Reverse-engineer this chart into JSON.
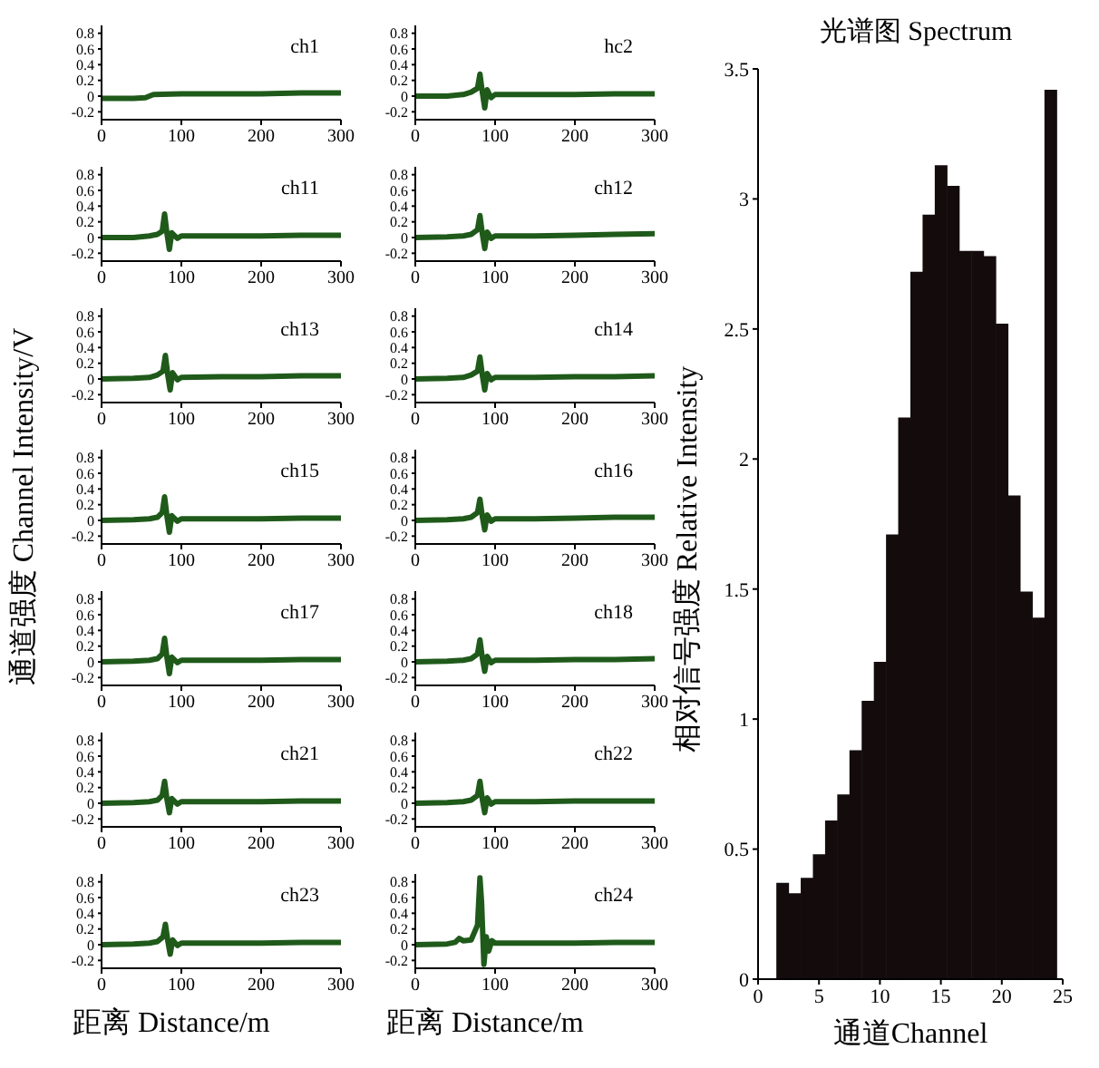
{
  "chart_data": [
    {
      "type": "line",
      "annotations": [
        "ch1"
      ],
      "color": "#1f5a1a",
      "x": [
        0,
        40,
        55,
        65,
        100,
        150,
        200,
        250,
        300
      ],
      "values": [
        -0.03,
        -0.03,
        -0.02,
        0.02,
        0.03,
        0.03,
        0.03,
        0.04,
        0.04
      ],
      "xlim": [
        0,
        300
      ],
      "xticks": [
        0,
        100,
        200,
        300
      ],
      "ylim": [
        -0.3,
        0.9
      ],
      "yticks": [
        -0.2,
        0,
        0.2,
        0.4,
        0.6,
        0.8
      ]
    },
    {
      "type": "line",
      "annotations": [
        "hc2"
      ],
      "color": "#1f5a1a",
      "x": [
        0,
        40,
        60,
        70,
        78,
        81,
        84,
        87,
        90,
        95,
        100,
        150,
        200,
        250,
        300
      ],
      "values": [
        0.0,
        0.0,
        0.02,
        0.05,
        0.1,
        0.28,
        0.05,
        -0.15,
        0.08,
        -0.02,
        0.02,
        0.02,
        0.02,
        0.03,
        0.03
      ],
      "xlim": [
        0,
        300
      ],
      "xticks": [
        0,
        100,
        200,
        300
      ],
      "ylim": [
        -0.3,
        0.9
      ],
      "yticks": [
        -0.2,
        0,
        0.2,
        0.4,
        0.6,
        0.8
      ]
    },
    {
      "type": "line",
      "annotations": [
        "ch11"
      ],
      "color": "#1f5a1a",
      "x": [
        0,
        40,
        60,
        70,
        76,
        79,
        82,
        85,
        88,
        95,
        100,
        150,
        200,
        250,
        300
      ],
      "values": [
        0.0,
        0.0,
        0.02,
        0.04,
        0.08,
        0.3,
        0.05,
        -0.15,
        0.06,
        -0.01,
        0.02,
        0.02,
        0.02,
        0.03,
        0.03
      ],
      "xlim": [
        0,
        300
      ],
      "xticks": [
        0,
        100,
        200,
        300
      ],
      "ylim": [
        -0.3,
        0.9
      ],
      "yticks": [
        -0.2,
        0,
        0.2,
        0.4,
        0.6,
        0.8
      ]
    },
    {
      "type": "line",
      "annotations": [
        "ch12"
      ],
      "color": "#1f5a1a",
      "x": [
        0,
        40,
        60,
        70,
        78,
        81,
        84,
        87,
        90,
        95,
        100,
        150,
        200,
        250,
        300
      ],
      "values": [
        0.0,
        0.01,
        0.02,
        0.04,
        0.1,
        0.28,
        0.05,
        -0.14,
        0.07,
        -0.01,
        0.02,
        0.02,
        0.03,
        0.04,
        0.05
      ],
      "xlim": [
        0,
        300
      ],
      "xticks": [
        0,
        100,
        200,
        300
      ],
      "ylim": [
        -0.3,
        0.9
      ],
      "yticks": [
        -0.2,
        0,
        0.2,
        0.4,
        0.6,
        0.8
      ]
    },
    {
      "type": "line",
      "annotations": [
        "ch13"
      ],
      "color": "#1f5a1a",
      "x": [
        0,
        40,
        60,
        70,
        77,
        80,
        83,
        86,
        89,
        95,
        100,
        150,
        200,
        250,
        300
      ],
      "values": [
        0.0,
        0.01,
        0.02,
        0.05,
        0.1,
        0.3,
        0.05,
        -0.14,
        0.08,
        -0.01,
        0.02,
        0.03,
        0.03,
        0.04,
        0.04
      ],
      "xlim": [
        0,
        300
      ],
      "xticks": [
        0,
        100,
        200,
        300
      ],
      "ylim": [
        -0.3,
        0.9
      ],
      "yticks": [
        -0.2,
        0,
        0.2,
        0.4,
        0.6,
        0.8
      ]
    },
    {
      "type": "line",
      "annotations": [
        "ch14"
      ],
      "color": "#1f5a1a",
      "x": [
        0,
        40,
        60,
        70,
        78,
        81,
        84,
        87,
        90,
        95,
        100,
        150,
        200,
        250,
        300
      ],
      "values": [
        0.0,
        0.01,
        0.02,
        0.05,
        0.1,
        0.28,
        0.05,
        -0.14,
        0.07,
        -0.01,
        0.02,
        0.02,
        0.03,
        0.03,
        0.04
      ],
      "xlim": [
        0,
        300
      ],
      "xticks": [
        0,
        100,
        200,
        300
      ],
      "ylim": [
        -0.3,
        0.9
      ],
      "yticks": [
        -0.2,
        0,
        0.2,
        0.4,
        0.6,
        0.8
      ]
    },
    {
      "type": "line",
      "ylabel": "通道强度 Channel Intensity/V",
      "annotations": [
        "ch15"
      ],
      "color": "#1f5a1a",
      "x": [
        0,
        40,
        60,
        70,
        76,
        79,
        82,
        85,
        88,
        95,
        100,
        150,
        200,
        250,
        300
      ],
      "values": [
        0.0,
        0.01,
        0.02,
        0.04,
        0.1,
        0.3,
        0.05,
        -0.15,
        0.06,
        -0.01,
        0.02,
        0.02,
        0.02,
        0.03,
        0.03
      ],
      "xlim": [
        0,
        300
      ],
      "xticks": [
        0,
        100,
        200,
        300
      ],
      "ylim": [
        -0.3,
        0.9
      ],
      "yticks": [
        -0.2,
        0,
        0.2,
        0.4,
        0.6,
        0.8
      ]
    },
    {
      "type": "line",
      "annotations": [
        "ch16"
      ],
      "color": "#1f5a1a",
      "x": [
        0,
        40,
        60,
        70,
        78,
        81,
        84,
        87,
        90,
        95,
        100,
        150,
        200,
        250,
        300
      ],
      "values": [
        0.0,
        0.01,
        0.02,
        0.04,
        0.1,
        0.27,
        0.05,
        -0.12,
        0.07,
        -0.01,
        0.02,
        0.02,
        0.03,
        0.04,
        0.04
      ],
      "xlim": [
        0,
        300
      ],
      "xticks": [
        0,
        100,
        200,
        300
      ],
      "ylim": [
        -0.3,
        0.9
      ],
      "yticks": [
        -0.2,
        0,
        0.2,
        0.4,
        0.6,
        0.8
      ]
    },
    {
      "type": "line",
      "annotations": [
        "ch17"
      ],
      "color": "#1f5a1a",
      "x": [
        0,
        40,
        60,
        70,
        76,
        79,
        82,
        85,
        88,
        95,
        100,
        150,
        200,
        250,
        300
      ],
      "values": [
        0.0,
        0.01,
        0.02,
        0.04,
        0.1,
        0.3,
        0.05,
        -0.15,
        0.06,
        -0.01,
        0.02,
        0.02,
        0.02,
        0.03,
        0.03
      ],
      "xlim": [
        0,
        300
      ],
      "xticks": [
        0,
        100,
        200,
        300
      ],
      "ylim": [
        -0.3,
        0.9
      ],
      "yticks": [
        -0.2,
        0,
        0.2,
        0.4,
        0.6,
        0.8
      ]
    },
    {
      "type": "line",
      "annotations": [
        "ch18"
      ],
      "color": "#1f5a1a",
      "x": [
        0,
        40,
        60,
        70,
        78,
        81,
        84,
        87,
        90,
        95,
        100,
        150,
        200,
        250,
        300
      ],
      "values": [
        0.0,
        0.01,
        0.02,
        0.04,
        0.1,
        0.28,
        0.05,
        -0.12,
        0.07,
        -0.01,
        0.02,
        0.02,
        0.03,
        0.03,
        0.04
      ],
      "xlim": [
        0,
        300
      ],
      "xticks": [
        0,
        100,
        200,
        300
      ],
      "ylim": [
        -0.3,
        0.9
      ],
      "yticks": [
        -0.2,
        0,
        0.2,
        0.4,
        0.6,
        0.8
      ]
    },
    {
      "type": "line",
      "annotations": [
        "ch21"
      ],
      "color": "#1f5a1a",
      "x": [
        0,
        40,
        60,
        70,
        76,
        79,
        82,
        85,
        88,
        95,
        100,
        150,
        200,
        250,
        300
      ],
      "values": [
        0.0,
        0.01,
        0.02,
        0.04,
        0.1,
        0.28,
        0.05,
        -0.12,
        0.06,
        -0.01,
        0.02,
        0.02,
        0.02,
        0.03,
        0.03
      ],
      "xlim": [
        0,
        300
      ],
      "xticks": [
        0,
        100,
        200,
        300
      ],
      "ylim": [
        -0.3,
        0.9
      ],
      "yticks": [
        -0.2,
        0,
        0.2,
        0.4,
        0.6,
        0.8
      ]
    },
    {
      "type": "line",
      "annotations": [
        "ch22"
      ],
      "color": "#1f5a1a",
      "x": [
        0,
        40,
        60,
        70,
        78,
        81,
        84,
        87,
        90,
        95,
        100,
        150,
        200,
        250,
        300
      ],
      "values": [
        0.0,
        0.01,
        0.02,
        0.04,
        0.1,
        0.28,
        0.05,
        -0.12,
        0.07,
        -0.01,
        0.02,
        0.02,
        0.03,
        0.03,
        0.03
      ],
      "xlim": [
        0,
        300
      ],
      "xticks": [
        0,
        100,
        200,
        300
      ],
      "ylim": [
        -0.3,
        0.9
      ],
      "yticks": [
        -0.2,
        0,
        0.2,
        0.4,
        0.6,
        0.8
      ]
    },
    {
      "type": "line",
      "xlabel": "距离 Distance/m",
      "annotations": [
        "ch23"
      ],
      "color": "#1f5a1a",
      "x": [
        0,
        40,
        60,
        70,
        77,
        80,
        83,
        86,
        89,
        95,
        100,
        150,
        200,
        250,
        300
      ],
      "values": [
        0.0,
        0.01,
        0.02,
        0.04,
        0.1,
        0.26,
        0.05,
        -0.12,
        0.06,
        -0.01,
        0.02,
        0.02,
        0.02,
        0.03,
        0.03
      ],
      "xlim": [
        0,
        300
      ],
      "xticks": [
        0,
        100,
        200,
        300
      ],
      "ylim": [
        -0.3,
        0.9
      ],
      "yticks": [
        -0.2,
        0,
        0.2,
        0.4,
        0.6,
        0.8
      ]
    },
    {
      "type": "line",
      "xlabel": "距离 Distance/m",
      "annotations": [
        "ch24"
      ],
      "color": "#1f5a1a",
      "x": [
        0,
        40,
        50,
        55,
        60,
        70,
        78,
        81,
        83,
        86,
        89,
        92,
        96,
        100,
        150,
        200,
        250,
        300
      ],
      "values": [
        0.0,
        0.01,
        0.03,
        0.08,
        0.05,
        0.06,
        0.25,
        0.85,
        0.55,
        -0.25,
        0.1,
        -0.08,
        0.05,
        0.02,
        0.02,
        0.02,
        0.03,
        0.03
      ],
      "xlim": [
        0,
        300
      ],
      "xticks": [
        0,
        100,
        200,
        300
      ],
      "ylim": [
        -0.3,
        0.9
      ],
      "yticks": [
        -0.2,
        0,
        0.2,
        0.4,
        0.6,
        0.8
      ]
    },
    {
      "type": "bar",
      "title": "光谱图 Spectrum",
      "xlabel": "通道Channel",
      "ylabel": "相对信号强度 Relative Intensity",
      "color": "#140c0c",
      "x": [
        2,
        3,
        4,
        5,
        6,
        7,
        8,
        9,
        10,
        11,
        12,
        13,
        14,
        15,
        16,
        17,
        18,
        19,
        20,
        21,
        22,
        23,
        24
      ],
      "values": [
        0.37,
        0.33,
        0.39,
        0.48,
        0.61,
        0.71,
        0.88,
        1.07,
        1.22,
        1.71,
        2.16,
        2.72,
        2.94,
        3.13,
        3.05,
        2.8,
        2.8,
        2.78,
        2.52,
        1.86,
        1.49,
        1.39,
        3.42
      ],
      "xlim": [
        0,
        25
      ],
      "xticks": [
        0,
        5,
        10,
        15,
        20,
        25
      ],
      "ylim": [
        0,
        3.5
      ],
      "yticks": [
        0,
        0.5,
        1,
        1.5,
        2,
        2.5,
        3,
        3.5
      ]
    }
  ]
}
